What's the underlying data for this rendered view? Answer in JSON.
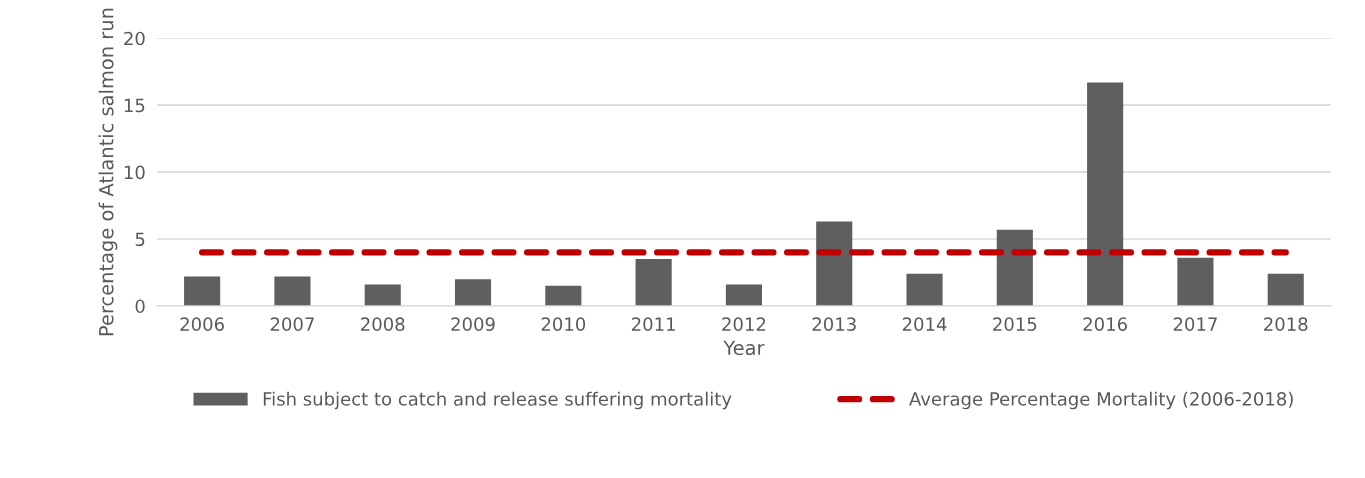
{
  "chart_data": {
    "type": "bar",
    "xlabel": "Year",
    "ylabel": "Percentage of Atlantic salmon run",
    "categories": [
      "2006",
      "2007",
      "2008",
      "2009",
      "2010",
      "2011",
      "2012",
      "2013",
      "2014",
      "2015",
      "2016",
      "2017",
      "2018"
    ],
    "series": [
      {
        "name": "Fish subject to catch and release suffering mortality",
        "color": "#5f5f5f",
        "values": [
          2.2,
          2.2,
          1.6,
          2.0,
          1.5,
          3.5,
          1.6,
          6.3,
          2.4,
          5.7,
          16.7,
          3.6,
          2.4
        ]
      },
      {
        "name": "Average Percentage Mortality (2006-2018)",
        "type": "line",
        "color": "#c00000",
        "line_style": "dashed",
        "values": [
          4,
          4,
          4,
          4,
          4,
          4,
          4,
          4,
          4,
          4,
          4,
          4,
          4
        ]
      }
    ],
    "ylim": [
      0,
      20
    ],
    "yticks": [
      0,
      5,
      10,
      15,
      20
    ],
    "grid": "y",
    "legend": "bottom"
  }
}
